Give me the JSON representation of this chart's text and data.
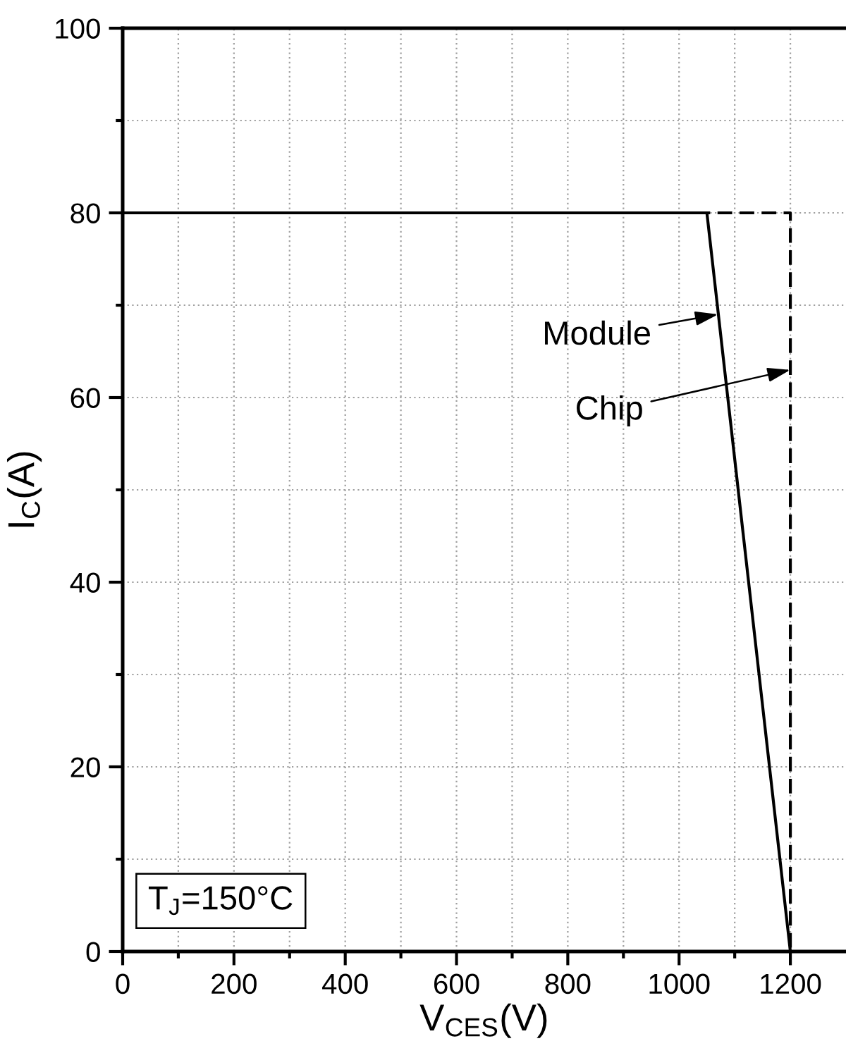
{
  "chart_data": {
    "type": "line",
    "xlabel": "V$_{CES}$(V)",
    "ylabel": "I$_{C}$(A)",
    "xlim": [
      0,
      1300
    ],
    "ylim": [
      0,
      100
    ],
    "xticks": [
      0,
      {
        "value": 100,
        "label": null
      },
      200,
      {
        "value": 300,
        "label": null
      },
      400,
      {
        "value": 500,
        "label": null
      },
      600,
      {
        "value": 700,
        "label": null
      },
      800,
      {
        "value": 900,
        "label": null
      },
      1000,
      {
        "value": 1100,
        "label": null
      },
      1200
    ],
    "yticks": [
      0,
      {
        "value": 10,
        "label": null
      },
      20,
      {
        "value": 30,
        "label": null
      },
      40,
      {
        "value": 50,
        "label": null
      },
      60,
      {
        "value": 70,
        "label": null
      },
      80,
      {
        "value": 90,
        "label": null
      },
      100
    ],
    "grid": true,
    "series": [
      {
        "color": "#000000",
        "line_style": "dashed",
        "x": [
          0,
          1200,
          1200
        ],
        "values": [
          80,
          80,
          0
        ]
      },
      {
        "color": "#000000",
        "line_style": "solid",
        "x": [
          0,
          1050,
          1200
        ],
        "values": [
          80,
          80,
          0
        ]
      }
    ],
    "annotations": [
      {
        "text": "Module",
        "x": 1070,
        "y": 69
      },
      {
        "text": "Chip",
        "x": 1200,
        "y": 63
      },
      "T$_{J}$=150°C"
    ]
  }
}
